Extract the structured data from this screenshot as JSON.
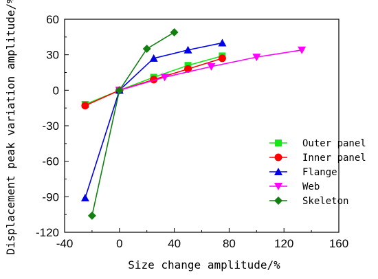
{
  "chart_data": {
    "type": "line",
    "xlabel": "Size change amplitude/%",
    "ylabel": "Displacement peak variation amplitude/%",
    "xlim": [
      -40,
      160
    ],
    "ylim": [
      -120,
      60
    ],
    "xticks": [
      -40,
      0,
      40,
      80,
      120,
      160
    ],
    "yticks": [
      -120,
      -90,
      -60,
      -30,
      0,
      30,
      60
    ],
    "grid": false,
    "legend_position": "right",
    "series": [
      {
        "name": "Outer panel",
        "color": "#19e619",
        "marker": "square",
        "x": [
          -25,
          0,
          25,
          50,
          75
        ],
        "y": [
          -12,
          0,
          11,
          21,
          29
        ]
      },
      {
        "name": "Inner panel",
        "color": "#ff0000",
        "marker": "circle",
        "x": [
          -25,
          0,
          25,
          50,
          75
        ],
        "y": [
          -13,
          0,
          9,
          18,
          27
        ]
      },
      {
        "name": "Flange",
        "color": "#0000e6",
        "marker": "triangle-up",
        "x": [
          -25,
          0,
          25,
          50,
          75
        ],
        "y": [
          -91,
          0,
          27,
          34,
          40
        ]
      },
      {
        "name": "Web",
        "color": "#ff00ff",
        "marker": "triangle-down",
        "x": [
          0,
          33,
          67,
          100,
          133
        ],
        "y": [
          0,
          11,
          20,
          28,
          34
        ]
      },
      {
        "name": "Skeleton",
        "color": "#118011",
        "marker": "diamond",
        "x": [
          -20,
          0,
          20,
          40
        ],
        "y": [
          -106,
          0,
          35,
          49
        ]
      }
    ]
  }
}
